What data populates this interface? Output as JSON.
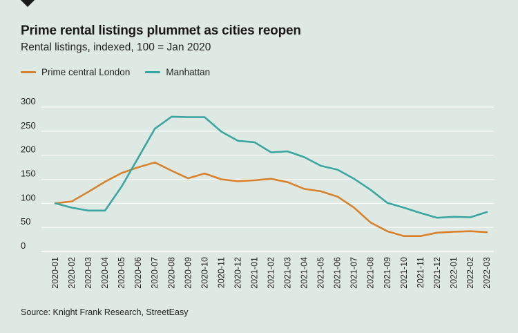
{
  "title": "Prime rental listings plummet as cities reopen",
  "subtitle": "Rental listings, indexed, 100 = Jan 2020",
  "source": "Source: Knight Frank Research, StreetEasy",
  "colors": {
    "background": "#dfe9e4",
    "london": "#d9822b",
    "manhattan": "#3aa6a2",
    "grid": "#ffffff"
  },
  "legend_items": [
    "Prime central London",
    "Manhattan"
  ],
  "chart_data": {
    "type": "line",
    "title": "Prime rental listings plummet as cities reopen",
    "subtitle": "Rental listings, indexed, 100 = Jan 2020",
    "x": [
      "2020-01",
      "2020-02",
      "2020-03",
      "2020-04",
      "2020-05",
      "2020-06",
      "2020-07",
      "2020-08",
      "2020-09",
      "2020-10",
      "2020-11",
      "2020-12",
      "2021-01",
      "2021-02",
      "2021-03",
      "2021-04",
      "2021-05",
      "2021-06",
      "2021-07",
      "2021-08",
      "2021-09",
      "2021-10",
      "2021-11",
      "2021-12",
      "2022-01",
      "2022-02",
      "2022-03"
    ],
    "series": [
      {
        "name": "Prime central London",
        "color": "#d9822b",
        "values": [
          100,
          104,
          124,
          145,
          163,
          175,
          185,
          168,
          152,
          162,
          150,
          146,
          148,
          151,
          144,
          130,
          125,
          114,
          91,
          60,
          42,
          32,
          32,
          39,
          41,
          42,
          40
        ]
      },
      {
        "name": "Manhattan",
        "color": "#3aa6a2",
        "values": [
          100,
          91,
          85,
          85,
          135,
          195,
          255,
          280,
          279,
          279,
          249,
          230,
          227,
          206,
          208,
          196,
          178,
          170,
          151,
          128,
          101,
          91,
          80,
          70,
          72,
          71,
          82
        ]
      }
    ],
    "yticks": [
      0,
      50,
      100,
      150,
      200,
      250,
      300
    ],
    "ylim": [
      0,
      300
    ],
    "grid": true,
    "legend": "top-left"
  }
}
